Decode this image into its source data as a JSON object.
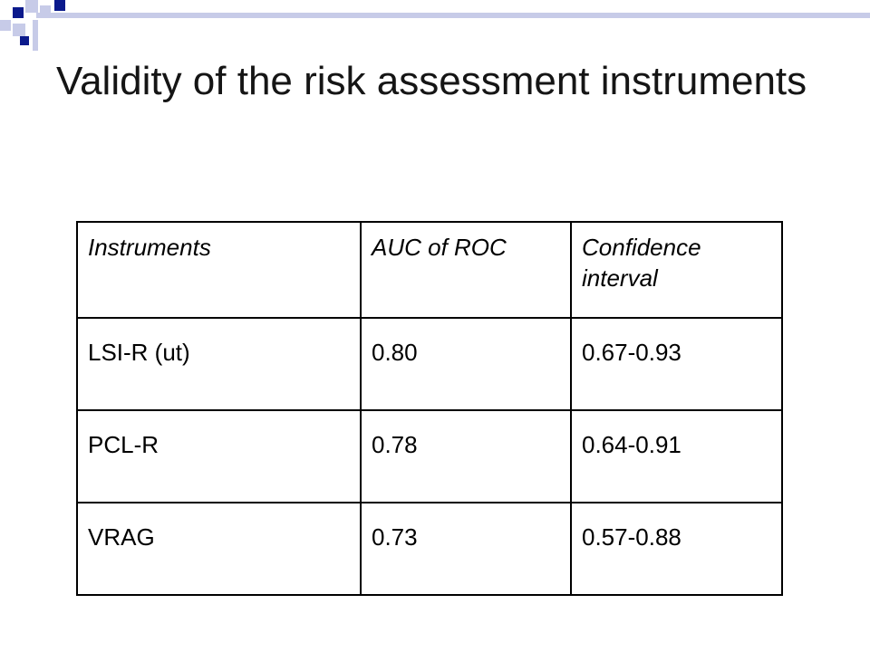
{
  "slide": {
    "title": "Validity of the risk assessment instruments",
    "accent_colors": {
      "dark": "#0b1a8c",
      "light": "#c7cbe8"
    }
  },
  "table": {
    "headers": [
      "Instruments",
      "AUC of ROC",
      "Confidence interval"
    ],
    "rows": [
      [
        "LSI-R (ut)",
        "0.80",
        "0.67-0.93"
      ],
      [
        "PCL-R",
        "0.78",
        "0.64-0.91"
      ],
      [
        "VRAG",
        "0.73",
        "0.57-0.88"
      ]
    ]
  }
}
